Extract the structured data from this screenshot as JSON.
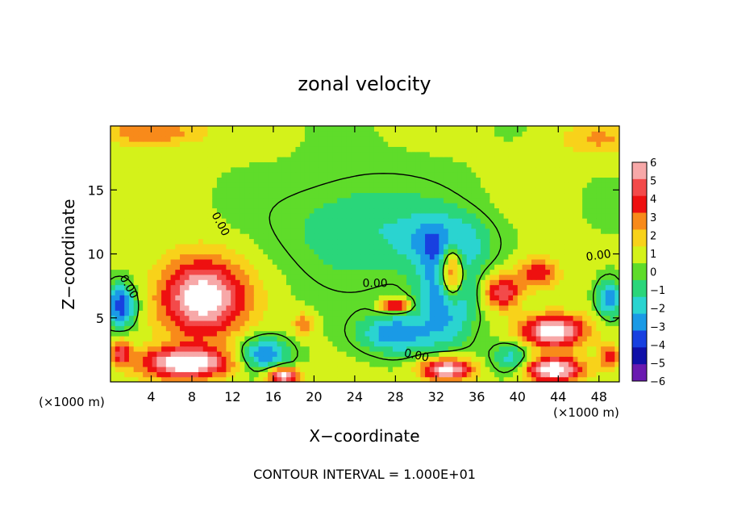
{
  "chart_data": {
    "type": "heatmap",
    "title": "zonal velocity",
    "xlabel": "X−coordinate",
    "ylabel": "Z−coordinate",
    "x_unit_left": "(×1000 m)",
    "x_unit_right": "(×1000 m)",
    "xlim": [
      0,
      50
    ],
    "ylim": [
      0,
      20
    ],
    "xticks": [
      4,
      8,
      12,
      16,
      20,
      24,
      28,
      32,
      36,
      40,
      44,
      48
    ],
    "yticks": [
      5,
      10,
      15
    ],
    "footer": "CONTOUR INTERVAL = 1.000E+01",
    "contour_labels": [
      "0.00",
      "0.00",
      "0.00",
      "0.00",
      "0.00"
    ],
    "colorbar": {
      "levels": [
        6,
        5,
        4,
        3,
        2,
        1,
        0,
        -1,
        -2,
        -3,
        -4,
        -5,
        -6
      ],
      "labels": [
        "6",
        "5",
        "4",
        "3",
        "2",
        "1",
        "0",
        "−1",
        "−2",
        "−3",
        "−4",
        "−5",
        "−6"
      ],
      "colors": [
        "#f7a8a8",
        "#f34a4a",
        "#ee1010",
        "#f88a1a",
        "#f8d21a",
        "#d4f21a",
        "#5fdc2a",
        "#2ad67a",
        "#2ad4d0",
        "#1a9ae6",
        "#1840e0",
        "#1010a8",
        "#6a1ab0"
      ]
    },
    "features": [
      {
        "kind": "blob",
        "value": 7,
        "x": 9,
        "z": 6.6,
        "rx": 4.3,
        "rz": 3.1
      },
      {
        "kind": "blob",
        "value": 7,
        "x": 7.5,
        "z": 1.5,
        "rx": 4.5,
        "rz": 1.2
      },
      {
        "kind": "blob",
        "value": 7,
        "x": 33.5,
        "z": 8.6,
        "rx": 1.2,
        "rz": 2.3
      },
      {
        "kind": "blob",
        "value": 7,
        "x": 43.5,
        "z": 4.0,
        "rx": 3.2,
        "rz": 1.3
      },
      {
        "kind": "blob",
        "value": 7,
        "x": 43.5,
        "z": 1.0,
        "rx": 3.0,
        "rz": 1.0
      },
      {
        "kind": "blob",
        "value": 7,
        "x": 33,
        "z": 1.0,
        "rx": 2.5,
        "rz": 0.9
      },
      {
        "kind": "blob",
        "value": 7,
        "x": 17,
        "z": 0.5,
        "rx": 1.5,
        "rz": 0.6
      },
      {
        "kind": "blob",
        "value": -5,
        "x": 33,
        "z": 7.0,
        "rx": 2.6,
        "rz": 3.6
      },
      {
        "kind": "blob",
        "value": -4,
        "x": 28,
        "z": 3.8,
        "rx": 3.5,
        "rz": 1.5
      },
      {
        "kind": "blob",
        "value": -5,
        "x": 1,
        "z": 6.0,
        "rx": 1.5,
        "rz": 1.6
      },
      {
        "kind": "blob",
        "value": -4,
        "x": 15,
        "z": 2.2,
        "rx": 2.5,
        "rz": 1.3
      },
      {
        "kind": "blob",
        "value": -4,
        "x": 49,
        "z": 6.5,
        "rx": 1.2,
        "rz": 1.5
      },
      {
        "kind": "blob",
        "value": -3,
        "x": 39.5,
        "z": 1.8,
        "rx": 2,
        "rz": 1.3
      },
      {
        "kind": "blob",
        "value": 5,
        "x": 38.5,
        "z": 7.0,
        "rx": 1.8,
        "rz": 1.3
      },
      {
        "kind": "blob",
        "value": 4,
        "x": 42,
        "z": 8.5,
        "rx": 2,
        "rz": 1.2
      },
      {
        "kind": "blob",
        "value": 5,
        "x": 28,
        "z": 6.0,
        "rx": 1.5,
        "rz": 0.5
      },
      {
        "kind": "blob",
        "value": 3,
        "x": 19,
        "z": 4.5,
        "rx": 1,
        "rz": 0.9
      },
      {
        "kind": "blob",
        "value": 4,
        "x": 1,
        "z": 2.3,
        "rx": 1,
        "rz": 1.0
      },
      {
        "kind": "blob",
        "value": 4,
        "x": 49,
        "z": 2.0,
        "rx": 1,
        "rz": 1.0
      },
      {
        "kind": "blob",
        "value": 3,
        "x": 4,
        "z": 19.5,
        "rx": 5,
        "rz": 1.0
      },
      {
        "kind": "blob",
        "value": 2,
        "x": 48,
        "z": 19.0,
        "rx": 4,
        "rz": 1.3
      },
      {
        "kind": "blob",
        "value": -2,
        "x": 25,
        "z": 12.0,
        "rx": 8,
        "rz": 4.0
      },
      {
        "kind": "blob",
        "value": -3,
        "x": 33,
        "z": 11.0,
        "rx": 4,
        "rz": 2.0
      }
    ]
  }
}
